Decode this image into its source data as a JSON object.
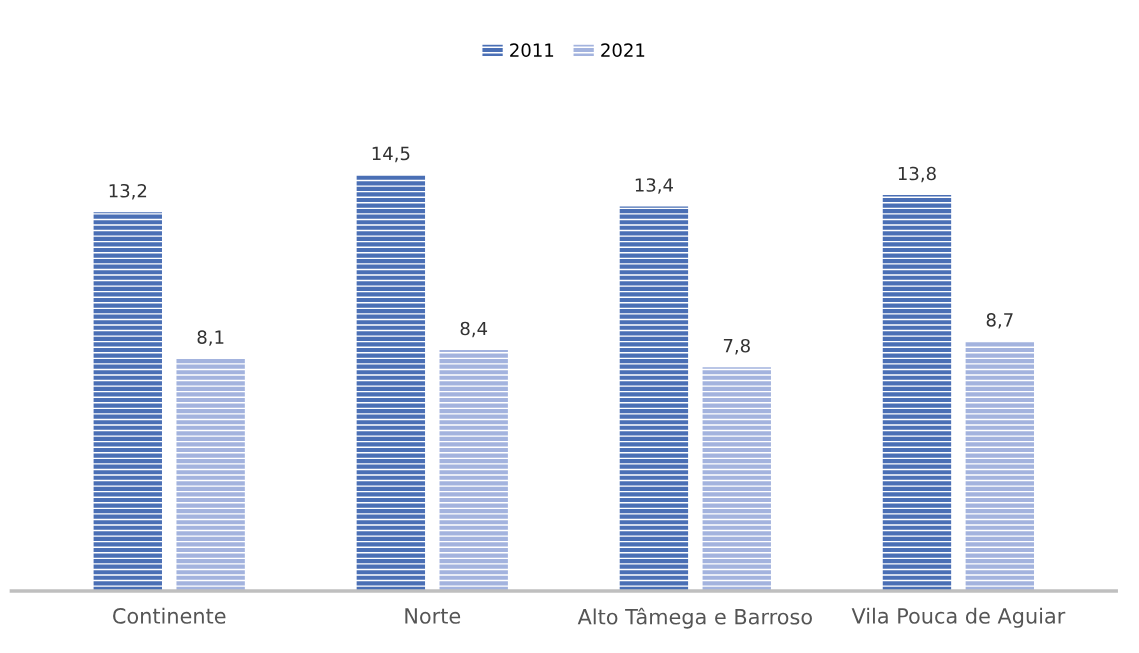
{
  "chart_data": {
    "type": "bar",
    "categories": [
      "Continente",
      "Norte",
      "Alto Tâmega e Barroso",
      "Vila Pouca de Aguiar"
    ],
    "series": [
      {
        "name": "2011",
        "color": "#4a6fb5",
        "values": [
          13.2,
          14.5,
          13.4,
          13.8
        ],
        "value_labels": [
          "13,2",
          "14,5",
          "13,4",
          "13,8"
        ]
      },
      {
        "name": "2021",
        "color": "#a3b3de",
        "values": [
          8.1,
          8.4,
          7.8,
          8.7
        ],
        "value_labels": [
          "8,1",
          "8,4",
          "7,8",
          "8,7"
        ]
      }
    ],
    "grid": false,
    "legend": "top"
  }
}
